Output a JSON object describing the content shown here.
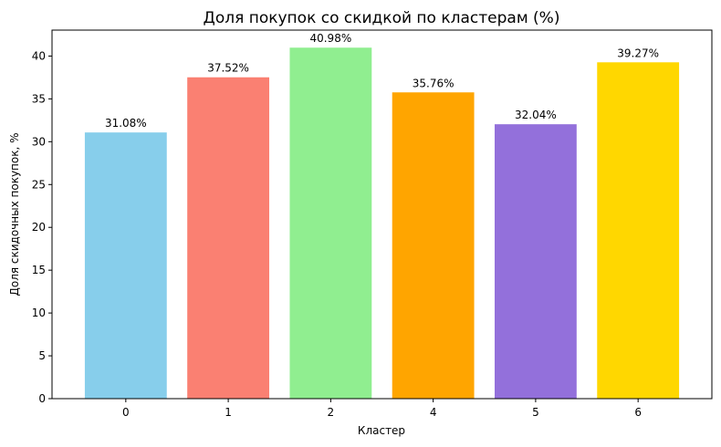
{
  "chart_data": {
    "type": "bar",
    "title": "Доля покупок со скидкой по кластерам (%)",
    "xlabel": "Кластер",
    "ylabel": "Доля скидочных покупок, %",
    "categories": [
      "0",
      "1",
      "2",
      "4",
      "5",
      "6"
    ],
    "values": [
      31.08,
      37.52,
      40.98,
      35.76,
      32.04,
      39.27
    ],
    "value_labels": [
      "31.08%",
      "37.52%",
      "40.98%",
      "35.76%",
      "32.04%",
      "39.27%"
    ],
    "colors": [
      "#87CEEB",
      "#FA8072",
      "#90EE90",
      "#FFA500",
      "#9370DB",
      "#FFD700"
    ],
    "yticks": [
      0,
      5,
      10,
      15,
      20,
      25,
      30,
      35,
      40
    ],
    "ylim": [
      0,
      43.03
    ],
    "grid": false,
    "legend": false
  }
}
